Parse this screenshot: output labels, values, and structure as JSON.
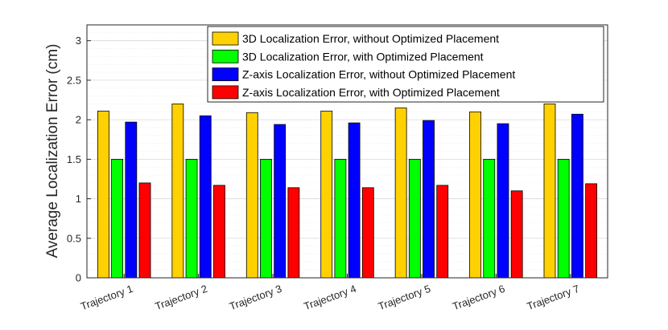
{
  "chart_data": {
    "type": "bar",
    "title": "",
    "xlabel": "",
    "ylabel": "Average Localization Error (cm)",
    "ylim": [
      0,
      3.2
    ],
    "yticks": [
      0,
      0.5,
      1,
      1.5,
      2,
      2.5,
      3
    ],
    "ytick_labels": [
      "0",
      "0.5",
      "1",
      "1.5",
      "2",
      "2.5",
      "3"
    ],
    "grid": true,
    "legend_position": "top-right",
    "categories": [
      "Trajectory 1",
      "Trajectory 2",
      "Trajectory 3",
      "Trajectory 4",
      "Trajectory 5",
      "Trajectory 6",
      "Trajectory 7"
    ],
    "series": [
      {
        "name": "3D Localization Error, without Optimized Placement",
        "color": "#FFD100",
        "values": [
          2.11,
          2.2,
          2.09,
          2.11,
          2.15,
          2.1,
          2.2
        ]
      },
      {
        "name": "3D Localization Error, with Optimized Placement",
        "color": "#00FF00",
        "values": [
          1.5,
          1.5,
          1.5,
          1.5,
          1.5,
          1.5,
          1.5
        ]
      },
      {
        "name": "Z-axis Localization Error, without Optimized Placement",
        "color": "#0000FF",
        "values": [
          1.97,
          2.05,
          1.94,
          1.96,
          1.99,
          1.95,
          2.07
        ]
      },
      {
        "name": "Z-axis Localization Error, with Optimized Placement",
        "color": "#FF0000",
        "values": [
          1.2,
          1.17,
          1.14,
          1.14,
          1.17,
          1.1,
          1.19
        ]
      }
    ]
  }
}
